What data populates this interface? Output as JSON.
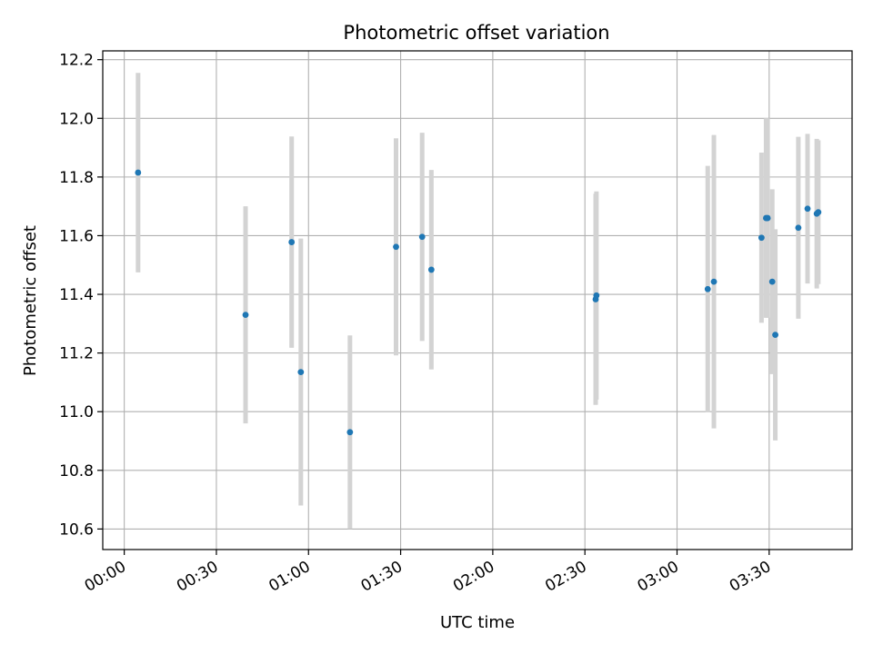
{
  "chart_data": {
    "type": "scatter",
    "title": "Photometric offset variation",
    "xlabel": "UTC time",
    "ylabel": "Photometric offset",
    "x_axis": "time",
    "xlim": [
      "23:53",
      "03:57"
    ],
    "ylim": [
      10.53,
      12.23
    ],
    "xticks": [
      "00:00",
      "00:30",
      "01:00",
      "01:30",
      "02:00",
      "02:30",
      "03:00",
      "03:30"
    ],
    "yticks": [
      "10.6",
      "10.8",
      "11.0",
      "11.2",
      "11.4",
      "11.6",
      "11.8",
      "12.0",
      "12.2"
    ],
    "grid": true,
    "colors": {
      "point": "#1f77b4",
      "errorbar": "#d3d3d3",
      "grid": "#b0b0b0",
      "axes": "#000000"
    },
    "points": [
      {
        "x": "00:04:30",
        "y": 11.815,
        "yerr": 0.34
      },
      {
        "x": "00:39:30",
        "y": 11.33,
        "yerr": 0.37
      },
      {
        "x": "00:54:30",
        "y": 11.578,
        "yerr": 0.36
      },
      {
        "x": "00:57:30",
        "y": 11.135,
        "yerr": 0.455
      },
      {
        "x": "01:13:30",
        "y": 10.93,
        "yerr": 0.33
      },
      {
        "x": "01:28:30",
        "y": 11.562,
        "yerr": 0.37
      },
      {
        "x": "01:37:00",
        "y": 11.596,
        "yerr": 0.355
      },
      {
        "x": "01:40:00",
        "y": 11.484,
        "yerr": 0.34
      },
      {
        "x": "02:33:30",
        "y": 11.383,
        "yerr": 0.36
      },
      {
        "x": "02:33:45",
        "y": 11.396,
        "yerr": 0.355
      },
      {
        "x": "03:10:00",
        "y": 11.418,
        "yerr": 0.42
      },
      {
        "x": "03:12:00",
        "y": 11.443,
        "yerr": 0.5
      },
      {
        "x": "03:27:30",
        "y": 11.593,
        "yerr": 0.29
      },
      {
        "x": "03:29:00",
        "y": 11.66,
        "yerr": 0.34
      },
      {
        "x": "03:29:30",
        "y": 11.66,
        "yerr": 0.34
      },
      {
        "x": "03:31:00",
        "y": 11.443,
        "yerr": 0.315
      },
      {
        "x": "03:32:00",
        "y": 11.262,
        "yerr": 0.36
      },
      {
        "x": "03:39:30",
        "y": 11.627,
        "yerr": 0.31
      },
      {
        "x": "03:42:30",
        "y": 11.692,
        "yerr": 0.255
      },
      {
        "x": "03:45:30",
        "y": 11.675,
        "yerr": 0.255
      },
      {
        "x": "03:46:00",
        "y": 11.68,
        "yerr": 0.245
      }
    ]
  }
}
